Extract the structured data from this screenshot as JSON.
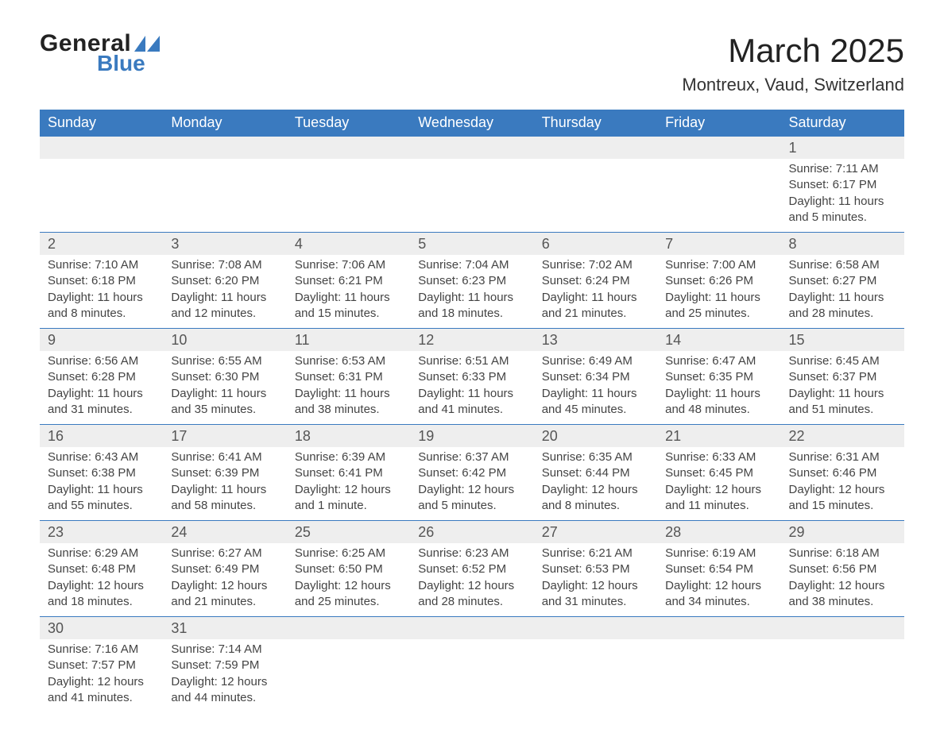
{
  "logo": {
    "text1": "General",
    "text2": "Blue",
    "color_accent": "#3a7abf"
  },
  "title": "March 2025",
  "location": "Montreux, Vaud, Switzerland",
  "colors": {
    "header_bg": "#3a7abf",
    "header_fg": "#ffffff",
    "row_band": "#eeeeee",
    "border": "#3a7abf",
    "text": "#444444"
  },
  "typography": {
    "title_fontsize": 42,
    "location_fontsize": 22,
    "weekday_fontsize": 18,
    "daynum_fontsize": 18,
    "body_fontsize": 15
  },
  "weekdays": [
    "Sunday",
    "Monday",
    "Tuesday",
    "Wednesday",
    "Thursday",
    "Friday",
    "Saturday"
  ],
  "weeks": [
    [
      null,
      null,
      null,
      null,
      null,
      null,
      {
        "n": "1",
        "sunrise": "Sunrise: 7:11 AM",
        "sunset": "Sunset: 6:17 PM",
        "daylight": "Daylight: 11 hours and 5 minutes."
      }
    ],
    [
      {
        "n": "2",
        "sunrise": "Sunrise: 7:10 AM",
        "sunset": "Sunset: 6:18 PM",
        "daylight": "Daylight: 11 hours and 8 minutes."
      },
      {
        "n": "3",
        "sunrise": "Sunrise: 7:08 AM",
        "sunset": "Sunset: 6:20 PM",
        "daylight": "Daylight: 11 hours and 12 minutes."
      },
      {
        "n": "4",
        "sunrise": "Sunrise: 7:06 AM",
        "sunset": "Sunset: 6:21 PM",
        "daylight": "Daylight: 11 hours and 15 minutes."
      },
      {
        "n": "5",
        "sunrise": "Sunrise: 7:04 AM",
        "sunset": "Sunset: 6:23 PM",
        "daylight": "Daylight: 11 hours and 18 minutes."
      },
      {
        "n": "6",
        "sunrise": "Sunrise: 7:02 AM",
        "sunset": "Sunset: 6:24 PM",
        "daylight": "Daylight: 11 hours and 21 minutes."
      },
      {
        "n": "7",
        "sunrise": "Sunrise: 7:00 AM",
        "sunset": "Sunset: 6:26 PM",
        "daylight": "Daylight: 11 hours and 25 minutes."
      },
      {
        "n": "8",
        "sunrise": "Sunrise: 6:58 AM",
        "sunset": "Sunset: 6:27 PM",
        "daylight": "Daylight: 11 hours and 28 minutes."
      }
    ],
    [
      {
        "n": "9",
        "sunrise": "Sunrise: 6:56 AM",
        "sunset": "Sunset: 6:28 PM",
        "daylight": "Daylight: 11 hours and 31 minutes."
      },
      {
        "n": "10",
        "sunrise": "Sunrise: 6:55 AM",
        "sunset": "Sunset: 6:30 PM",
        "daylight": "Daylight: 11 hours and 35 minutes."
      },
      {
        "n": "11",
        "sunrise": "Sunrise: 6:53 AM",
        "sunset": "Sunset: 6:31 PM",
        "daylight": "Daylight: 11 hours and 38 minutes."
      },
      {
        "n": "12",
        "sunrise": "Sunrise: 6:51 AM",
        "sunset": "Sunset: 6:33 PM",
        "daylight": "Daylight: 11 hours and 41 minutes."
      },
      {
        "n": "13",
        "sunrise": "Sunrise: 6:49 AM",
        "sunset": "Sunset: 6:34 PM",
        "daylight": "Daylight: 11 hours and 45 minutes."
      },
      {
        "n": "14",
        "sunrise": "Sunrise: 6:47 AM",
        "sunset": "Sunset: 6:35 PM",
        "daylight": "Daylight: 11 hours and 48 minutes."
      },
      {
        "n": "15",
        "sunrise": "Sunrise: 6:45 AM",
        "sunset": "Sunset: 6:37 PM",
        "daylight": "Daylight: 11 hours and 51 minutes."
      }
    ],
    [
      {
        "n": "16",
        "sunrise": "Sunrise: 6:43 AM",
        "sunset": "Sunset: 6:38 PM",
        "daylight": "Daylight: 11 hours and 55 minutes."
      },
      {
        "n": "17",
        "sunrise": "Sunrise: 6:41 AM",
        "sunset": "Sunset: 6:39 PM",
        "daylight": "Daylight: 11 hours and 58 minutes."
      },
      {
        "n": "18",
        "sunrise": "Sunrise: 6:39 AM",
        "sunset": "Sunset: 6:41 PM",
        "daylight": "Daylight: 12 hours and 1 minute."
      },
      {
        "n": "19",
        "sunrise": "Sunrise: 6:37 AM",
        "sunset": "Sunset: 6:42 PM",
        "daylight": "Daylight: 12 hours and 5 minutes."
      },
      {
        "n": "20",
        "sunrise": "Sunrise: 6:35 AM",
        "sunset": "Sunset: 6:44 PM",
        "daylight": "Daylight: 12 hours and 8 minutes."
      },
      {
        "n": "21",
        "sunrise": "Sunrise: 6:33 AM",
        "sunset": "Sunset: 6:45 PM",
        "daylight": "Daylight: 12 hours and 11 minutes."
      },
      {
        "n": "22",
        "sunrise": "Sunrise: 6:31 AM",
        "sunset": "Sunset: 6:46 PM",
        "daylight": "Daylight: 12 hours and 15 minutes."
      }
    ],
    [
      {
        "n": "23",
        "sunrise": "Sunrise: 6:29 AM",
        "sunset": "Sunset: 6:48 PM",
        "daylight": "Daylight: 12 hours and 18 minutes."
      },
      {
        "n": "24",
        "sunrise": "Sunrise: 6:27 AM",
        "sunset": "Sunset: 6:49 PM",
        "daylight": "Daylight: 12 hours and 21 minutes."
      },
      {
        "n": "25",
        "sunrise": "Sunrise: 6:25 AM",
        "sunset": "Sunset: 6:50 PM",
        "daylight": "Daylight: 12 hours and 25 minutes."
      },
      {
        "n": "26",
        "sunrise": "Sunrise: 6:23 AM",
        "sunset": "Sunset: 6:52 PM",
        "daylight": "Daylight: 12 hours and 28 minutes."
      },
      {
        "n": "27",
        "sunrise": "Sunrise: 6:21 AM",
        "sunset": "Sunset: 6:53 PM",
        "daylight": "Daylight: 12 hours and 31 minutes."
      },
      {
        "n": "28",
        "sunrise": "Sunrise: 6:19 AM",
        "sunset": "Sunset: 6:54 PM",
        "daylight": "Daylight: 12 hours and 34 minutes."
      },
      {
        "n": "29",
        "sunrise": "Sunrise: 6:18 AM",
        "sunset": "Sunset: 6:56 PM",
        "daylight": "Daylight: 12 hours and 38 minutes."
      }
    ],
    [
      {
        "n": "30",
        "sunrise": "Sunrise: 7:16 AM",
        "sunset": "Sunset: 7:57 PM",
        "daylight": "Daylight: 12 hours and 41 minutes."
      },
      {
        "n": "31",
        "sunrise": "Sunrise: 7:14 AM",
        "sunset": "Sunset: 7:59 PM",
        "daylight": "Daylight: 12 hours and 44 minutes."
      },
      null,
      null,
      null,
      null,
      null
    ]
  ]
}
